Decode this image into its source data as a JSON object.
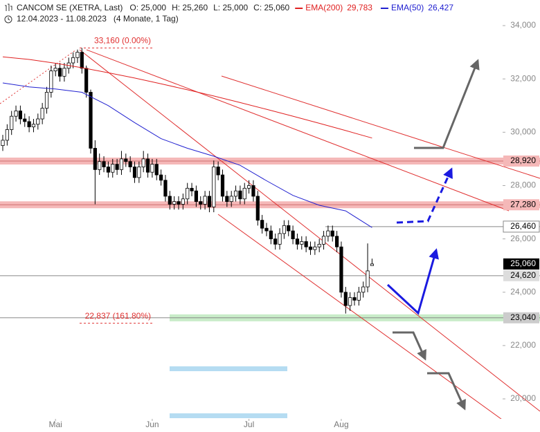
{
  "chart_data": {
    "type": "candlestick",
    "title": "CANCOM SE (XETRA, Last)",
    "ohlc_labels": [
      "O: 25,000",
      "H: 25,260",
      "L: 25,000",
      "C: 25,060"
    ],
    "period": "12.04.2023 - 11.08.2023",
    "period_note": "(4 Monate, 1 Tag)",
    "categories": [
      null,
      null,
      null,
      null,
      null,
      null,
      null,
      null,
      null,
      null,
      null,
      null,
      "Mai",
      null,
      null,
      null,
      null,
      null,
      null,
      null,
      null,
      null,
      null,
      null,
      null,
      null,
      null,
      null,
      null,
      null,
      null,
      null,
      null,
      null,
      "Jun",
      null,
      null,
      null,
      null,
      null,
      null,
      null,
      null,
      null,
      null,
      null,
      null,
      null,
      null,
      null,
      null,
      null,
      null,
      null,
      null,
      null,
      "Jul",
      null,
      null,
      null,
      null,
      null,
      null,
      null,
      null,
      null,
      null,
      null,
      null,
      null,
      null,
      null,
      null,
      null,
      null,
      null,
      null,
      "Aug",
      null,
      null,
      null,
      null,
      null,
      null,
      null
    ],
    "open": [
      29500,
      29700,
      30100,
      30600,
      30800,
      30500,
      30400,
      30200,
      30300,
      30500,
      30900,
      31500,
      32300,
      32400,
      32100,
      32400,
      32600,
      32800,
      33000,
      32400,
      31500,
      29400,
      28600,
      28900,
      28700,
      28500,
      28800,
      28600,
      29000,
      28900,
      28700,
      28300,
      28700,
      29000,
      28500,
      28800,
      28400,
      28200,
      27600,
      27300,
      27400,
      27300,
      27500,
      27900,
      27800,
      27400,
      27300,
      27600,
      27200,
      28700,
      28400,
      27600,
      27400,
      27600,
      27800,
      27500,
      27900,
      28000,
      27600,
      26700,
      26400,
      26300,
      26000,
      25800,
      26200,
      26500,
      26300,
      26000,
      25800,
      25900,
      25700,
      25600,
      25700,
      25800,
      26100,
      26300,
      26100,
      25700,
      24000,
      23500,
      23800,
      23700,
      24000,
      24200,
      25000
    ],
    "high": [
      29900,
      30300,
      30800,
      31000,
      31000,
      30700,
      30600,
      30500,
      30700,
      31100,
      31700,
      32500,
      32600,
      32600,
      32600,
      32800,
      33000,
      33100,
      33160,
      32500,
      31600,
      29700,
      29200,
      29100,
      28900,
      29000,
      29000,
      29300,
      29200,
      29100,
      28900,
      28900,
      29300,
      29200,
      29000,
      29000,
      28600,
      28400,
      27800,
      27600,
      27600,
      27700,
      28100,
      28100,
      28000,
      27600,
      27800,
      27800,
      28940,
      28900,
      28600,
      27800,
      27800,
      28000,
      28000,
      28100,
      28200,
      28200,
      27800,
      26900,
      26600,
      26500,
      26200,
      26400,
      26700,
      26700,
      26500,
      26200,
      26100,
      26100,
      25900,
      25900,
      26000,
      26300,
      26500,
      26500,
      26300,
      25900,
      24200,
      24000,
      24000,
      24200,
      24400,
      25830,
      25260
    ],
    "low": [
      29300,
      29500,
      29900,
      30400,
      30300,
      30200,
      30000,
      30000,
      30100,
      30300,
      30700,
      31300,
      32100,
      31900,
      31900,
      32200,
      32400,
      32600,
      32200,
      31300,
      29200,
      27300,
      28400,
      28500,
      28300,
      28300,
      28400,
      28400,
      28700,
      28500,
      28100,
      28100,
      28500,
      28300,
      28300,
      28200,
      28000,
      27400,
      27100,
      27100,
      27100,
      27100,
      27300,
      27600,
      27200,
      27100,
      27100,
      27000,
      27000,
      28200,
      27400,
      27200,
      27200,
      27400,
      27300,
      27300,
      27700,
      27400,
      26500,
      26200,
      26100,
      25800,
      25600,
      25600,
      26000,
      26100,
      25800,
      25600,
      25600,
      25500,
      25400,
      25400,
      25500,
      25600,
      25900,
      25900,
      25500,
      23800,
      23200,
      23300,
      23500,
      23500,
      23800,
      24000,
      25000
    ],
    "close": [
      29700,
      30100,
      30600,
      30800,
      30500,
      30400,
      30200,
      30300,
      30500,
      30900,
      31500,
      32300,
      32400,
      32100,
      32400,
      32600,
      32800,
      33000,
      32400,
      31500,
      29400,
      28600,
      28900,
      28700,
      28500,
      28800,
      28600,
      29000,
      28900,
      28700,
      28300,
      28700,
      29000,
      28500,
      28800,
      28400,
      28200,
      27600,
      27300,
      27400,
      27300,
      27500,
      27900,
      27800,
      27400,
      27300,
      27600,
      27200,
      28700,
      28400,
      27600,
      27400,
      27600,
      27800,
      27500,
      27900,
      28000,
      27600,
      26700,
      26400,
      26300,
      26000,
      25800,
      26200,
      26500,
      26300,
      26000,
      25800,
      25900,
      25700,
      25600,
      25700,
      25800,
      26100,
      26300,
      26100,
      25700,
      24000,
      23500,
      23800,
      23700,
      24000,
      24200,
      24800,
      25060
    ],
    "up_color": "#ffffff",
    "down_color": "#000000",
    "series": [
      {
        "name": "EMA(200)",
        "last_label": "29,783",
        "color": "#e02020",
        "x": [
          0,
          6,
          12,
          18,
          24,
          30,
          36,
          42,
          48,
          54,
          60,
          66,
          72,
          78,
          84
        ],
        "values": [
          32830,
          32731,
          32587,
          32419,
          32233,
          32032,
          31818,
          31593,
          31358,
          31114,
          30862,
          30603,
          30335,
          30063,
          29783
        ]
      },
      {
        "name": "EMA(50)",
        "last_label": "26,427",
        "color": "#2020d0",
        "x": [
          0,
          6,
          12,
          18,
          24,
          30,
          36,
          42,
          48,
          54,
          60,
          66,
          72,
          78,
          84
        ],
        "values": [
          31850,
          31700,
          31620,
          31500,
          31000,
          30360,
          29760,
          29400,
          29100,
          28760,
          28180,
          27630,
          27260,
          27050,
          26427
        ]
      }
    ],
    "levels": [
      {
        "value": 28920,
        "label": "28,920",
        "band": "#f5b8b8",
        "label_bg": "#f5b8b8",
        "label_color": "#000000"
      },
      {
        "value": 27280,
        "label": "27,280",
        "band": "#f5b8b8",
        "label_bg": "#f5b8b8",
        "label_color": "#000000"
      },
      {
        "value": 26460,
        "label": "26,460",
        "line": "#888888",
        "label_bg": "#ffffff",
        "label_color": "#000000"
      },
      {
        "value": 25060,
        "label": "25,060",
        "label_bg": "#000000",
        "label_color": "#ffffff"
      },
      {
        "value": 24620,
        "label": "24,620",
        "line": "#888888",
        "label_bg": "#dddddd",
        "label_color": "#000000"
      },
      {
        "value": 23040,
        "label": "23,040",
        "line": "#888888",
        "band": "#c8ecc8",
        "label_bg": "#cccccc",
        "label_color": "#000000"
      }
    ],
    "fibonacci": [
      {
        "value": 33160,
        "label": "33,160 (0.00%)"
      },
      {
        "value": 22837,
        "label": "22,837 (161.80%)"
      }
    ],
    "ylim": [
      19250,
      34960
    ],
    "yticks": [
      {
        "value": 20000,
        "label": "20,000"
      },
      {
        "value": 22000,
        "label": "22,000"
      },
      {
        "value": 24000,
        "label": "24,000"
      },
      {
        "value": 26000,
        "label": "26,000"
      },
      {
        "value": 28000,
        "label": "28,000"
      },
      {
        "value": 30000,
        "label": "30,000"
      },
      {
        "value": 32000,
        "label": "32,000"
      },
      {
        "value": 34000,
        "label": "34,000"
      }
    ]
  }
}
